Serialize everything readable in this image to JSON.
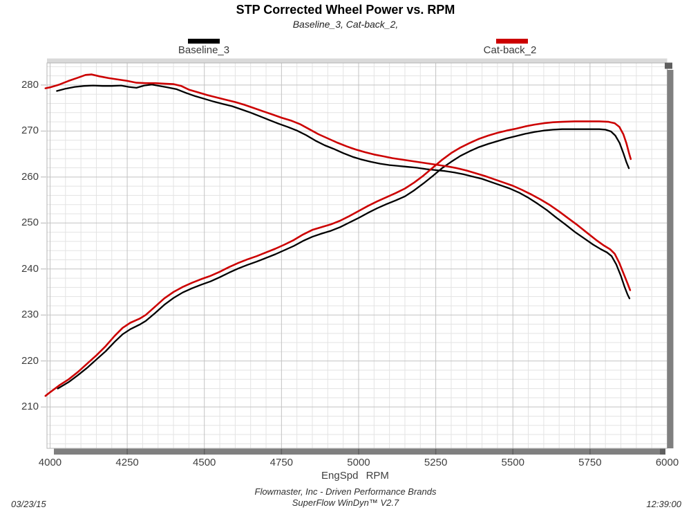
{
  "title": "STP Corrected Wheel Power vs. RPM",
  "subtitle": "Baseline_3, Cat-back_2,",
  "legend": [
    {
      "label": "Baseline_3",
      "color": "#000000"
    },
    {
      "label": "Cat-back_2",
      "color": "#cc0000"
    }
  ],
  "footer": {
    "date": "03/23/15",
    "company": "Flowmaster, Inc - Driven Performance Brands",
    "software": "SuperFlow WinDyn™ V2.7",
    "time": "12:39:00"
  },
  "colors": {
    "baseline": "#000000",
    "catback": "#cc0000",
    "grid_minor": "#e3e3e3",
    "grid_major": "#c2c2c2",
    "plot_border": "#b4b4b4",
    "scrollbar": "#7f7f7f",
    "scrollbar_dark": "#5f5f5f",
    "top_bar": "#d9d9d9"
  },
  "chart_data": {
    "type": "line",
    "title": "STP Corrected Wheel Power vs. RPM",
    "subtitle": "Baseline_3, Cat-back_2,",
    "xlabel": "EngSpd RPM",
    "ylabel": "",
    "xlim": [
      3990,
      6000
    ],
    "ylim": [
      201,
      284.8
    ],
    "x_ticks": [
      4000,
      4250,
      4500,
      4750,
      5000,
      5250,
      5500,
      5750,
      6000
    ],
    "y_ticks": [
      210,
      220,
      230,
      240,
      250,
      260,
      270,
      280
    ],
    "grid": "minor every 50 RPM (x) and 2 units (y); major at labeled ticks",
    "legend_position": "top",
    "series": [
      {
        "name": "Baseline_3 power (ascending)",
        "legend": "Baseline_3",
        "color": "#000000",
        "points": [
          [
            4025,
            214.0
          ],
          [
            4060,
            215.4
          ],
          [
            4090,
            216.9
          ],
          [
            4120,
            218.5
          ],
          [
            4150,
            220.3
          ],
          [
            4180,
            222.1
          ],
          [
            4210,
            224.2
          ],
          [
            4235,
            225.8
          ],
          [
            4260,
            226.9
          ],
          [
            4290,
            227.9
          ],
          [
            4310,
            228.7
          ],
          [
            4340,
            230.4
          ],
          [
            4370,
            232.2
          ],
          [
            4400,
            233.7
          ],
          [
            4430,
            234.9
          ],
          [
            4460,
            235.8
          ],
          [
            4490,
            236.6
          ],
          [
            4520,
            237.3
          ],
          [
            4550,
            238.2
          ],
          [
            4580,
            239.2
          ],
          [
            4610,
            240.1
          ],
          [
            4640,
            240.9
          ],
          [
            4670,
            241.6
          ],
          [
            4700,
            242.4
          ],
          [
            4730,
            243.2
          ],
          [
            4760,
            244.1
          ],
          [
            4790,
            245.0
          ],
          [
            4820,
            246.1
          ],
          [
            4850,
            247.0
          ],
          [
            4880,
            247.7
          ],
          [
            4910,
            248.3
          ],
          [
            4940,
            249.1
          ],
          [
            4970,
            250.1
          ],
          [
            5000,
            251.1
          ],
          [
            5030,
            252.2
          ],
          [
            5060,
            253.2
          ],
          [
            5090,
            254.1
          ],
          [
            5120,
            254.9
          ],
          [
            5150,
            255.8
          ],
          [
            5180,
            257.1
          ],
          [
            5210,
            258.6
          ],
          [
            5240,
            260.2
          ],
          [
            5270,
            261.9
          ],
          [
            5300,
            263.3
          ],
          [
            5330,
            264.6
          ],
          [
            5360,
            265.6
          ],
          [
            5390,
            266.5
          ],
          [
            5420,
            267.2
          ],
          [
            5450,
            267.8
          ],
          [
            5480,
            268.4
          ],
          [
            5510,
            268.9
          ],
          [
            5540,
            269.4
          ],
          [
            5570,
            269.8
          ],
          [
            5600,
            270.1
          ],
          [
            5630,
            270.3
          ],
          [
            5660,
            270.4
          ],
          [
            5700,
            270.4
          ],
          [
            5740,
            270.4
          ],
          [
            5780,
            270.4
          ],
          [
            5800,
            270.3
          ],
          [
            5818,
            269.9
          ],
          [
            5832,
            269.0
          ],
          [
            5846,
            267.4
          ],
          [
            5858,
            265.2
          ],
          [
            5868,
            263.2
          ],
          [
            5876,
            261.9
          ]
        ]
      },
      {
        "name": "Cat-back_2 power (ascending)",
        "legend": "Cat-back_2",
        "color": "#cc0000",
        "points": [
          [
            3985,
            212.4
          ],
          [
            4000,
            213.2
          ],
          [
            4030,
            214.7
          ],
          [
            4060,
            216.0
          ],
          [
            4090,
            217.6
          ],
          [
            4120,
            219.4
          ],
          [
            4150,
            221.2
          ],
          [
            4180,
            223.2
          ],
          [
            4210,
            225.5
          ],
          [
            4235,
            227.2
          ],
          [
            4260,
            228.3
          ],
          [
            4290,
            229.2
          ],
          [
            4310,
            230.0
          ],
          [
            4340,
            231.8
          ],
          [
            4370,
            233.6
          ],
          [
            4400,
            235.0
          ],
          [
            4430,
            236.1
          ],
          [
            4460,
            237.0
          ],
          [
            4490,
            237.8
          ],
          [
            4520,
            238.5
          ],
          [
            4550,
            239.4
          ],
          [
            4580,
            240.4
          ],
          [
            4610,
            241.3
          ],
          [
            4640,
            242.1
          ],
          [
            4670,
            242.8
          ],
          [
            4700,
            243.6
          ],
          [
            4730,
            244.4
          ],
          [
            4760,
            245.3
          ],
          [
            4790,
            246.3
          ],
          [
            4820,
            247.5
          ],
          [
            4850,
            248.5
          ],
          [
            4880,
            249.1
          ],
          [
            4910,
            249.7
          ],
          [
            4940,
            250.5
          ],
          [
            4970,
            251.5
          ],
          [
            5000,
            252.6
          ],
          [
            5030,
            253.7
          ],
          [
            5060,
            254.7
          ],
          [
            5090,
            255.6
          ],
          [
            5120,
            256.5
          ],
          [
            5150,
            257.5
          ],
          [
            5180,
            258.8
          ],
          [
            5210,
            260.3
          ],
          [
            5240,
            262.0
          ],
          [
            5270,
            263.7
          ],
          [
            5300,
            265.2
          ],
          [
            5330,
            266.4
          ],
          [
            5360,
            267.4
          ],
          [
            5390,
            268.3
          ],
          [
            5420,
            269.0
          ],
          [
            5450,
            269.6
          ],
          [
            5480,
            270.1
          ],
          [
            5510,
            270.5
          ],
          [
            5540,
            271.0
          ],
          [
            5570,
            271.4
          ],
          [
            5600,
            271.7
          ],
          [
            5630,
            271.9
          ],
          [
            5660,
            272.0
          ],
          [
            5700,
            272.1
          ],
          [
            5740,
            272.1
          ],
          [
            5780,
            272.1
          ],
          [
            5810,
            272.0
          ],
          [
            5830,
            271.7
          ],
          [
            5845,
            270.9
          ],
          [
            5858,
            269.3
          ],
          [
            5868,
            267.3
          ],
          [
            5876,
            265.3
          ],
          [
            5882,
            263.9
          ]
        ]
      },
      {
        "name": "Baseline_3 torque (descending)",
        "legend": "Baseline_3",
        "color": "#000000",
        "points": [
          [
            4022,
            278.7
          ],
          [
            4050,
            279.2
          ],
          [
            4080,
            279.6
          ],
          [
            4110,
            279.8
          ],
          [
            4140,
            279.9
          ],
          [
            4170,
            279.8
          ],
          [
            4200,
            279.8
          ],
          [
            4230,
            279.9
          ],
          [
            4255,
            279.6
          ],
          [
            4280,
            279.4
          ],
          [
            4305,
            279.9
          ],
          [
            4330,
            280.1
          ],
          [
            4355,
            279.8
          ],
          [
            4380,
            279.5
          ],
          [
            4410,
            279.1
          ],
          [
            4440,
            278.3
          ],
          [
            4470,
            277.6
          ],
          [
            4500,
            277.0
          ],
          [
            4530,
            276.4
          ],
          [
            4560,
            275.9
          ],
          [
            4590,
            275.4
          ],
          [
            4620,
            274.7
          ],
          [
            4650,
            274.0
          ],
          [
            4680,
            273.2
          ],
          [
            4710,
            272.4
          ],
          [
            4740,
            271.6
          ],
          [
            4770,
            270.9
          ],
          [
            4800,
            270.1
          ],
          [
            4830,
            269.1
          ],
          [
            4860,
            267.9
          ],
          [
            4890,
            266.9
          ],
          [
            4920,
            266.1
          ],
          [
            4950,
            265.2
          ],
          [
            4980,
            264.4
          ],
          [
            5010,
            263.8
          ],
          [
            5040,
            263.3
          ],
          [
            5070,
            262.9
          ],
          [
            5100,
            262.6
          ],
          [
            5130,
            262.4
          ],
          [
            5160,
            262.2
          ],
          [
            5190,
            262.0
          ],
          [
            5220,
            261.7
          ],
          [
            5250,
            261.5
          ],
          [
            5280,
            261.3
          ],
          [
            5310,
            261.0
          ],
          [
            5340,
            260.6
          ],
          [
            5370,
            260.1
          ],
          [
            5400,
            259.6
          ],
          [
            5430,
            258.9
          ],
          [
            5460,
            258.2
          ],
          [
            5490,
            257.5
          ],
          [
            5520,
            256.6
          ],
          [
            5550,
            255.5
          ],
          [
            5580,
            254.2
          ],
          [
            5610,
            252.8
          ],
          [
            5640,
            251.2
          ],
          [
            5670,
            249.7
          ],
          [
            5700,
            248.1
          ],
          [
            5730,
            246.7
          ],
          [
            5760,
            245.3
          ],
          [
            5785,
            244.3
          ],
          [
            5805,
            243.6
          ],
          [
            5820,
            242.8
          ],
          [
            5835,
            241.0
          ],
          [
            5850,
            238.5
          ],
          [
            5862,
            236.1
          ],
          [
            5872,
            234.4
          ],
          [
            5878,
            233.6
          ]
        ]
      },
      {
        "name": "Cat-back_2 torque (descending)",
        "legend": "Cat-back_2",
        "color": "#cc0000",
        "points": [
          [
            3985,
            279.3
          ],
          [
            4000,
            279.5
          ],
          [
            4030,
            280.1
          ],
          [
            4060,
            280.9
          ],
          [
            4090,
            281.6
          ],
          [
            4115,
            282.2
          ],
          [
            4135,
            282.3
          ],
          [
            4160,
            281.9
          ],
          [
            4190,
            281.5
          ],
          [
            4220,
            281.2
          ],
          [
            4250,
            280.9
          ],
          [
            4280,
            280.5
          ],
          [
            4310,
            280.4
          ],
          [
            4340,
            280.4
          ],
          [
            4370,
            280.3
          ],
          [
            4400,
            280.2
          ],
          [
            4425,
            279.8
          ],
          [
            4450,
            279.0
          ],
          [
            4480,
            278.4
          ],
          [
            4510,
            277.8
          ],
          [
            4540,
            277.3
          ],
          [
            4570,
            276.8
          ],
          [
            4600,
            276.3
          ],
          [
            4630,
            275.7
          ],
          [
            4660,
            275.0
          ],
          [
            4690,
            274.3
          ],
          [
            4720,
            273.6
          ],
          [
            4750,
            272.9
          ],
          [
            4780,
            272.3
          ],
          [
            4810,
            271.5
          ],
          [
            4840,
            270.4
          ],
          [
            4870,
            269.3
          ],
          [
            4900,
            268.4
          ],
          [
            4930,
            267.5
          ],
          [
            4960,
            266.7
          ],
          [
            4990,
            266.0
          ],
          [
            5020,
            265.4
          ],
          [
            5050,
            264.9
          ],
          [
            5080,
            264.5
          ],
          [
            5110,
            264.1
          ],
          [
            5140,
            263.8
          ],
          [
            5170,
            263.5
          ],
          [
            5200,
            263.2
          ],
          [
            5230,
            262.9
          ],
          [
            5260,
            262.6
          ],
          [
            5290,
            262.3
          ],
          [
            5320,
            261.9
          ],
          [
            5350,
            261.4
          ],
          [
            5380,
            260.8
          ],
          [
            5410,
            260.2
          ],
          [
            5440,
            259.5
          ],
          [
            5470,
            258.8
          ],
          [
            5500,
            258.1
          ],
          [
            5530,
            257.2
          ],
          [
            5560,
            256.2
          ],
          [
            5590,
            255.1
          ],
          [
            5620,
            253.9
          ],
          [
            5650,
            252.5
          ],
          [
            5680,
            251.0
          ],
          [
            5710,
            249.5
          ],
          [
            5740,
            247.9
          ],
          [
            5770,
            246.3
          ],
          [
            5795,
            245.1
          ],
          [
            5815,
            244.3
          ],
          [
            5830,
            243.3
          ],
          [
            5845,
            241.3
          ],
          [
            5860,
            238.8
          ],
          [
            5872,
            236.8
          ],
          [
            5880,
            235.4
          ]
        ]
      }
    ]
  }
}
